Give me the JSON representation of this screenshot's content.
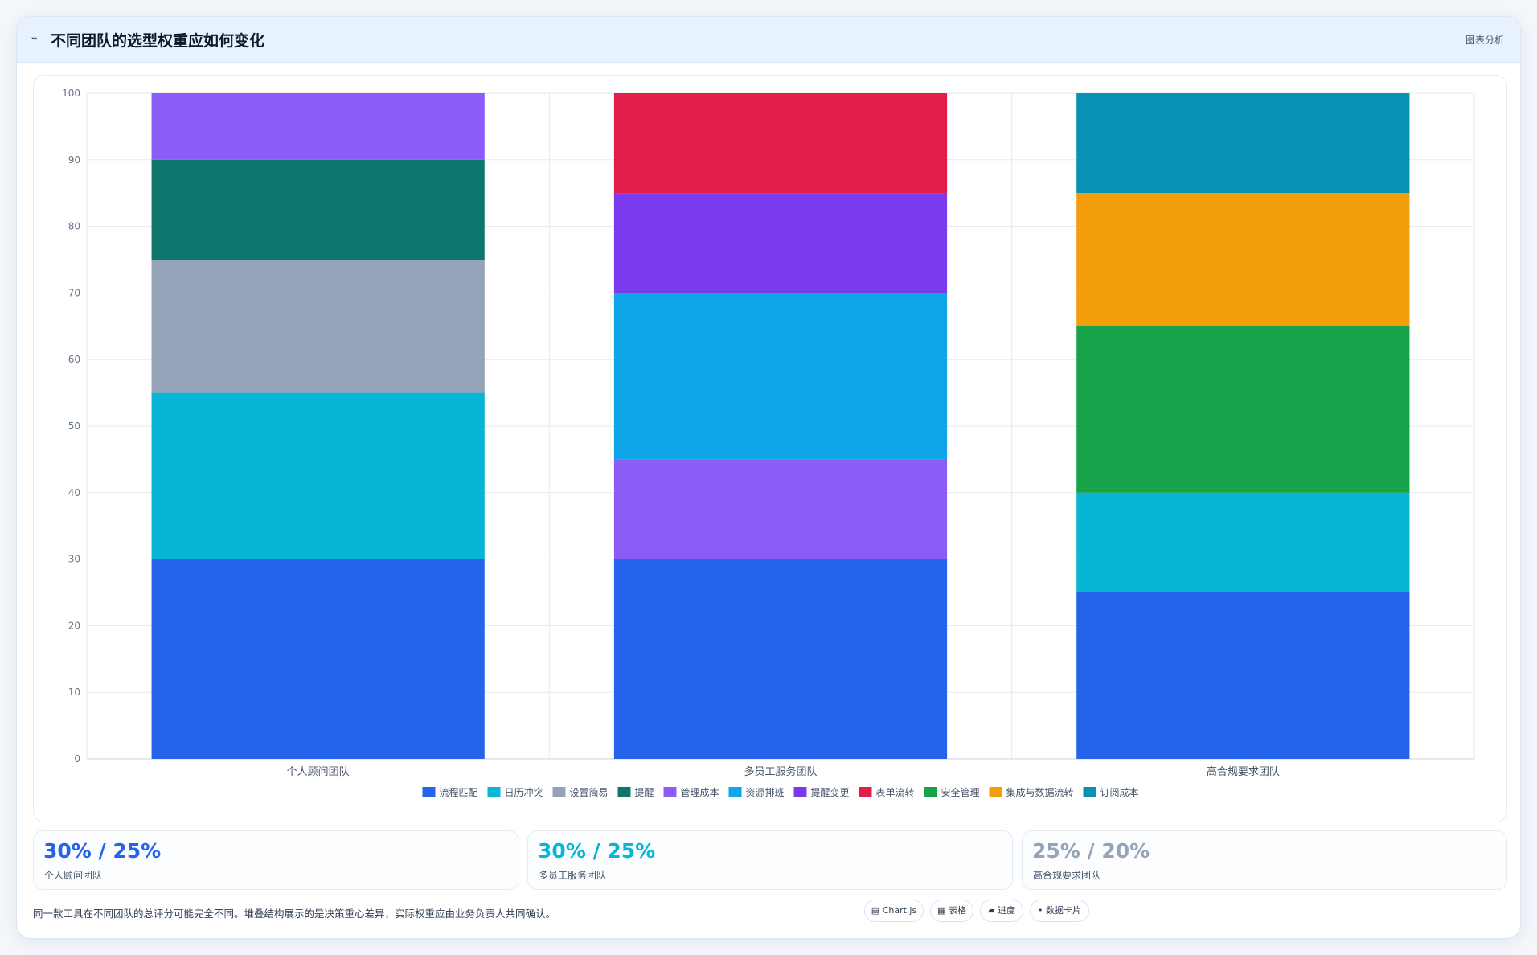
{
  "header": {
    "icon": "chart-line-icon",
    "title": "不同团队的选型权重应如何变化",
    "tag": "图表分析"
  },
  "chart_data": {
    "type": "bar",
    "stacked": true,
    "categories": [
      "个人顾问团队",
      "多员工服务团队",
      "高合规要求团队"
    ],
    "ylim": [
      0,
      100
    ],
    "yticks": [
      0,
      10,
      20,
      30,
      40,
      50,
      60,
      70,
      80,
      90,
      100
    ],
    "grid": true,
    "legend_position": "bottom",
    "series": [
      {
        "name": "流程匹配",
        "color": "#2563eb",
        "values": [
          30,
          30,
          25
        ]
      },
      {
        "name": "日历冲突",
        "color": "#06b6d4",
        "values": [
          25,
          0,
          15
        ]
      },
      {
        "name": "设置简易",
        "color": "#94a3b8",
        "values": [
          20,
          0,
          0
        ]
      },
      {
        "name": "提醒",
        "color": "#0f766e",
        "values": [
          15,
          0,
          0
        ]
      },
      {
        "name": "管理成本",
        "color": "#8b5cf6",
        "values": [
          10,
          15,
          0
        ]
      },
      {
        "name": "资源排班",
        "color": "#0ea5e9",
        "values": [
          0,
          25,
          0
        ]
      },
      {
        "name": "提醒变更",
        "color": "#7c3aed",
        "values": [
          0,
          15,
          0
        ]
      },
      {
        "name": "表单流转",
        "color": "#e11d48",
        "values": [
          0,
          15,
          0
        ]
      },
      {
        "name": "安全管理",
        "color": "#16a34a",
        "values": [
          0,
          0,
          25
        ]
      },
      {
        "name": "集成与数据流转",
        "color": "#f59e0b",
        "values": [
          0,
          0,
          20
        ]
      },
      {
        "name": "订阅成本",
        "color": "#0891b2",
        "values": [
          0,
          0,
          15
        ]
      }
    ]
  },
  "stats": [
    {
      "value": "30% / 25%",
      "label": "个人顾问团队",
      "color": "#2563eb"
    },
    {
      "value": "30% / 25%",
      "label": "多员工服务团队",
      "color": "#06b6d4"
    },
    {
      "value": "25% / 20%",
      "label": "高合规要求团队",
      "color": "#94a3b8"
    }
  ],
  "footer": {
    "note": "同一款工具在不同团队的总评分可能完全不同。堆叠结构展示的是决策重心差异，实际权重应由业务负责人共同确认。",
    "chips": [
      {
        "icon": "chart-icon",
        "glyph": "▤",
        "label": "Chart.js"
      },
      {
        "icon": "table-icon",
        "glyph": "▦",
        "label": "表格"
      },
      {
        "icon": "progress-icon",
        "glyph": "▰",
        "label": "进度"
      },
      {
        "icon": "card-icon",
        "glyph": "•",
        "label": "数据卡片"
      }
    ]
  }
}
